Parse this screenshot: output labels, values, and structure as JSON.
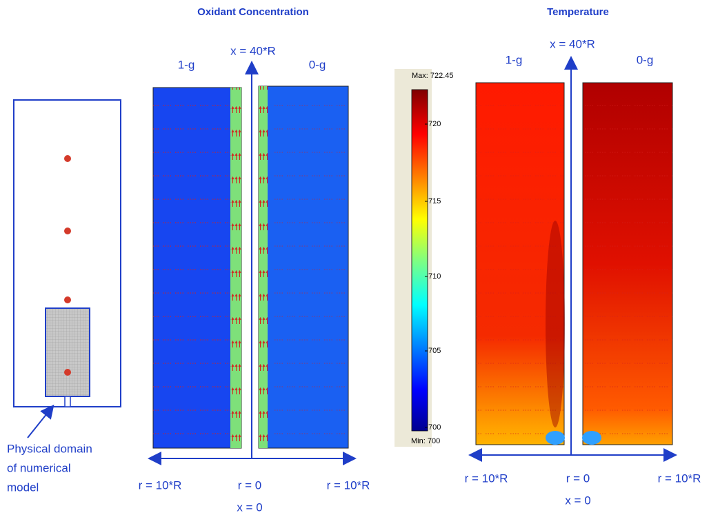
{
  "titles": {
    "oxidant": "Oxidant Concentration",
    "temperature": "Temperature"
  },
  "schematic": {
    "caption": [
      "Physical domain",
      "of numerical",
      "model"
    ]
  },
  "oxidant_panel": {
    "left_label": "1-g",
    "top_label": "x = 40*R",
    "right_label": "0-g",
    "r_left": "r = 10*R",
    "r_center": "r = 0",
    "r_right": "r = 10*R",
    "x_bottom": "x = 0"
  },
  "colorbar": {
    "max_label": "Max: 722.45",
    "min_label": "Min: 700",
    "ticks": [
      "720",
      "715",
      "710",
      "705",
      "700"
    ]
  },
  "temperature_panel": {
    "left_label": "1-g",
    "top_label": "x = 40*R",
    "right_label": "0-g",
    "r_left": "r = 10*R",
    "r_center": "r = 0",
    "r_right": "r = 10*R",
    "x_bottom": "x = 0"
  }
}
